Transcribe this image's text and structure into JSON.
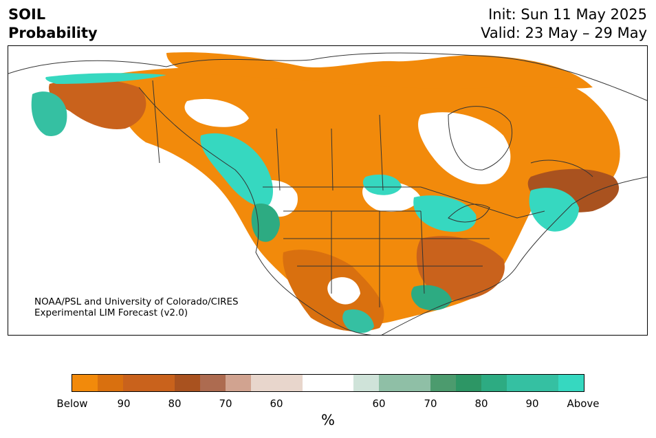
{
  "title": {
    "variable": "SOIL",
    "subtitle": "Probability",
    "init": "Init: Sun 11 May 2025",
    "valid": "Valid: 23 May – 29 May"
  },
  "credit": {
    "line1": "NOAA/PSL and University of Colorado/CIRES",
    "line2": "Experimental LIM Forecast (v2.0)"
  },
  "colorbar": {
    "colors": [
      "#f28a0b",
      "#d9700f",
      "#c9621c",
      "#c9621c",
      "#a9521f",
      "#ad6b50",
      "#d1a390",
      "#e8d6cc",
      "#e8d6cc",
      "#ffffff",
      "#ffffff",
      "#cfe3d9",
      "#8fbfa6",
      "#8fbfa6",
      "#4c9b6e",
      "#2d9665",
      "#2dab82",
      "#35c0a2",
      "#35c0a2",
      "#36d8c0"
    ],
    "ticks": [
      "Below",
      "90",
      "80",
      "70",
      "60",
      "60",
      "70",
      "80",
      "90",
      "Above"
    ],
    "unit": "%"
  },
  "legend_colors": {
    "below": "#f28a0b",
    "above": "#36d8c0",
    "boundaries": "#333333"
  }
}
